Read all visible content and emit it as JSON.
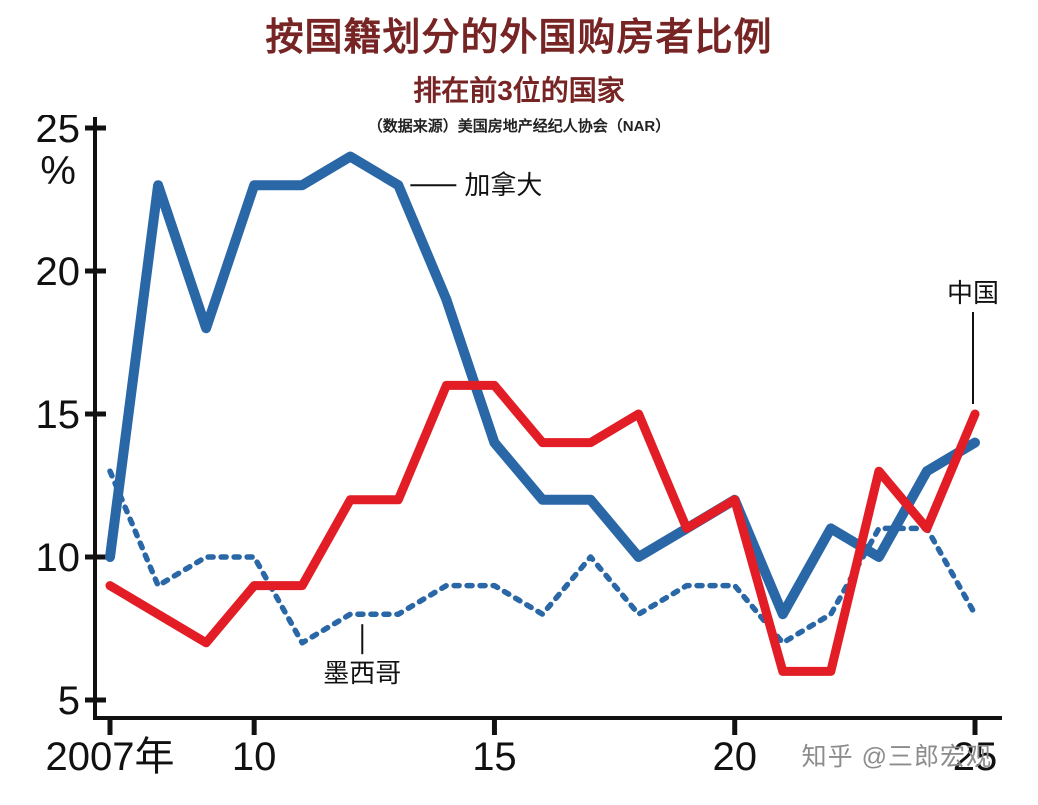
{
  "header": {
    "title": "按国籍划分的外国购房者比例",
    "subtitle": "排在前3位的国家",
    "source": "（数据来源）美国房地产经纪人协会（NAR）"
  },
  "watermark": "知乎 @三郎宏观",
  "colors": {
    "blue": "#2a67a6",
    "red": "#e31d25",
    "axis": "#111111",
    "title": "#772424",
    "watermark": "#8c8c8c"
  },
  "chart_data": {
    "type": "line",
    "title": "按国籍划分的外国购房者比例",
    "subtitle": "排在前3位的国家",
    "source": "（数据来源）美国房地产经纪人协会（NAR）",
    "x": [
      2007,
      2008,
      2009,
      2010,
      2011,
      2012,
      2013,
      2014,
      2015,
      2016,
      2017,
      2018,
      2019,
      2020,
      2021,
      2022,
      2023,
      2024,
      2025
    ],
    "x_ticks": [
      {
        "year": 2007,
        "label": "2007年"
      },
      {
        "year": 2010,
        "label": "10"
      },
      {
        "year": 2015,
        "label": "15"
      },
      {
        "year": 2020,
        "label": "20"
      },
      {
        "year": 2025,
        "label": "25"
      }
    ],
    "ylim": [
      5,
      25
    ],
    "y_ticks": [
      25,
      20,
      15,
      10,
      5
    ],
    "y_unit": "%",
    "grid": false,
    "legend": "annotated-labels",
    "series": [
      {
        "name": "墨西哥",
        "color": "#2a67a6",
        "dash": "5 8",
        "width": 5.5,
        "values": [
          13,
          9,
          10,
          10,
          7,
          8,
          8,
          9,
          9,
          8,
          10,
          8,
          9,
          9,
          7,
          8,
          11,
          11,
          8
        ]
      },
      {
        "name": "加拿大",
        "color": "#2a67a6",
        "dash": null,
        "width": 10,
        "values": [
          10,
          23,
          18,
          23,
          23,
          24,
          23,
          19,
          14,
          12,
          12,
          10,
          11,
          12,
          8,
          11,
          10,
          13,
          14
        ]
      },
      {
        "name": "中国",
        "color": "#e31d25",
        "dash": null,
        "width": 9,
        "values": [
          9,
          8,
          7,
          9,
          9,
          12,
          12,
          16,
          16,
          14,
          14,
          15,
          11,
          12,
          6,
          6,
          13,
          11,
          15
        ]
      }
    ],
    "annotations": [
      {
        "label": "加拿大",
        "year": 2013,
        "value": 23,
        "placement": "right"
      },
      {
        "label": "中国",
        "year": 2025,
        "value": 15,
        "placement": "above"
      },
      {
        "label": "墨西哥",
        "year": 2012,
        "value": 8,
        "placement": "below"
      }
    ]
  }
}
